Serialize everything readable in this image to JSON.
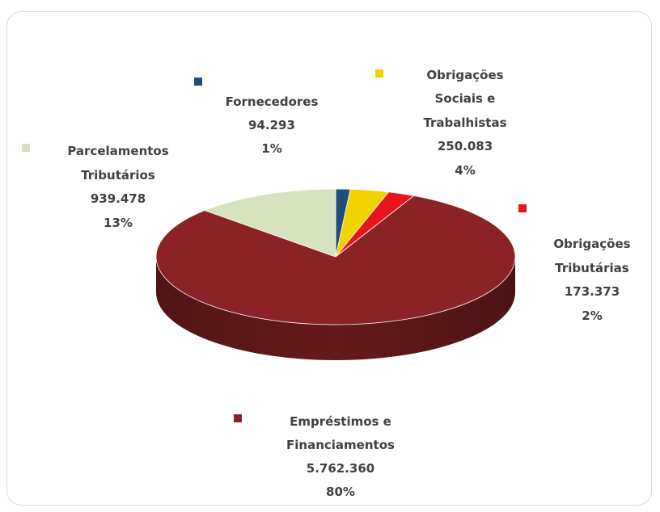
{
  "chart_data": {
    "type": "pie",
    "style": "3d",
    "slices": [
      {
        "name": "Fornecedores",
        "label_lines": [
          "Fornecedores"
        ],
        "value": 94293,
        "value_text": "94.293",
        "percent_text": "1%",
        "color": "#1f4e79"
      },
      {
        "name": "Obrigações Sociais e Trabalhistas",
        "label_lines": [
          "Obrigações",
          "Sociais e",
          "Trabalhistas"
        ],
        "value": 250083,
        "value_text": "250.083",
        "percent_text": "4%",
        "color": "#f2d300"
      },
      {
        "name": "Obrigações Tributárias",
        "label_lines": [
          "Obrigações",
          "Tributárias"
        ],
        "value": 173373,
        "value_text": "173.373",
        "percent_text": "2%",
        "color": "#e8141b"
      },
      {
        "name": "Empréstimos e Financiamentos",
        "label_lines": [
          "Empréstimos e",
          "Financiamentos"
        ],
        "value": 5762360,
        "value_text": "5.762.360",
        "percent_text": "80%",
        "color": "#8b2326"
      },
      {
        "name": "Parcelamentos Tributários",
        "label_lines": [
          "Parcelamentos",
          "Tributários"
        ],
        "value": 939478,
        "value_text": "939.478",
        "percent_text": "13%",
        "color": "#d6e3bc"
      }
    ]
  }
}
